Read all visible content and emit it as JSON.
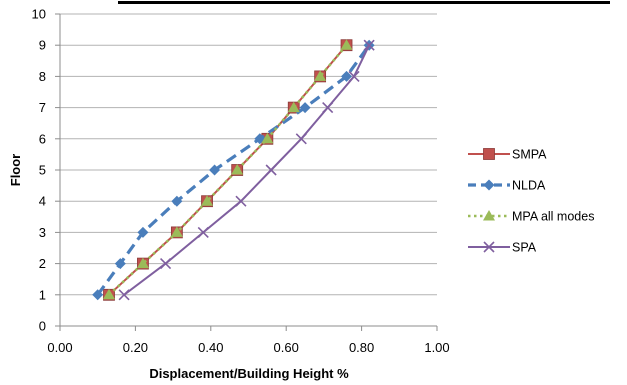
{
  "chart_data": {
    "type": "line",
    "title": "",
    "xlabel": "Displacement/Building Height %",
    "ylabel": "Floor",
    "xlim": [
      0,
      1
    ],
    "ylim": [
      0,
      10
    ],
    "x_ticks": [
      "0.00",
      "0.20",
      "0.40",
      "0.60",
      "0.80",
      "1.00"
    ],
    "y_ticks": [
      "0",
      "1",
      "2",
      "3",
      "4",
      "5",
      "6",
      "7",
      "8",
      "9",
      "10"
    ],
    "grid": "horizontal",
    "legend_position": "right",
    "series": [
      {
        "name": "SMPA",
        "color": "#c0504d",
        "marker": "square",
        "line_style": "solid",
        "x": [
          0.13,
          0.22,
          0.31,
          0.39,
          0.47,
          0.55,
          0.62,
          0.69,
          0.76
        ],
        "y": [
          1,
          2,
          3,
          4,
          5,
          6,
          7,
          8,
          9
        ]
      },
      {
        "name": "NLDA",
        "color": "#4a7ebb",
        "marker": "diamond",
        "line_style": "dashed",
        "x": [
          0.1,
          0.16,
          0.22,
          0.31,
          0.41,
          0.53,
          0.65,
          0.76,
          0.82
        ],
        "y": [
          1,
          2,
          3,
          4,
          5,
          6,
          7,
          8,
          9
        ]
      },
      {
        "name": "MPA all modes",
        "color": "#9bbb59",
        "marker": "triangle",
        "line_style": "dotted",
        "x": [
          0.13,
          0.22,
          0.31,
          0.39,
          0.47,
          0.55,
          0.62,
          0.69,
          0.76
        ],
        "y": [
          1,
          2,
          3,
          4,
          5,
          6,
          7,
          8,
          9
        ]
      },
      {
        "name": "SPA",
        "color": "#7f5f9f",
        "marker": "x",
        "line_style": "solid",
        "x": [
          0.17,
          0.28,
          0.38,
          0.48,
          0.56,
          0.64,
          0.71,
          0.78,
          0.82
        ],
        "y": [
          1,
          2,
          3,
          4,
          5,
          6,
          7,
          8,
          9
        ]
      }
    ]
  }
}
